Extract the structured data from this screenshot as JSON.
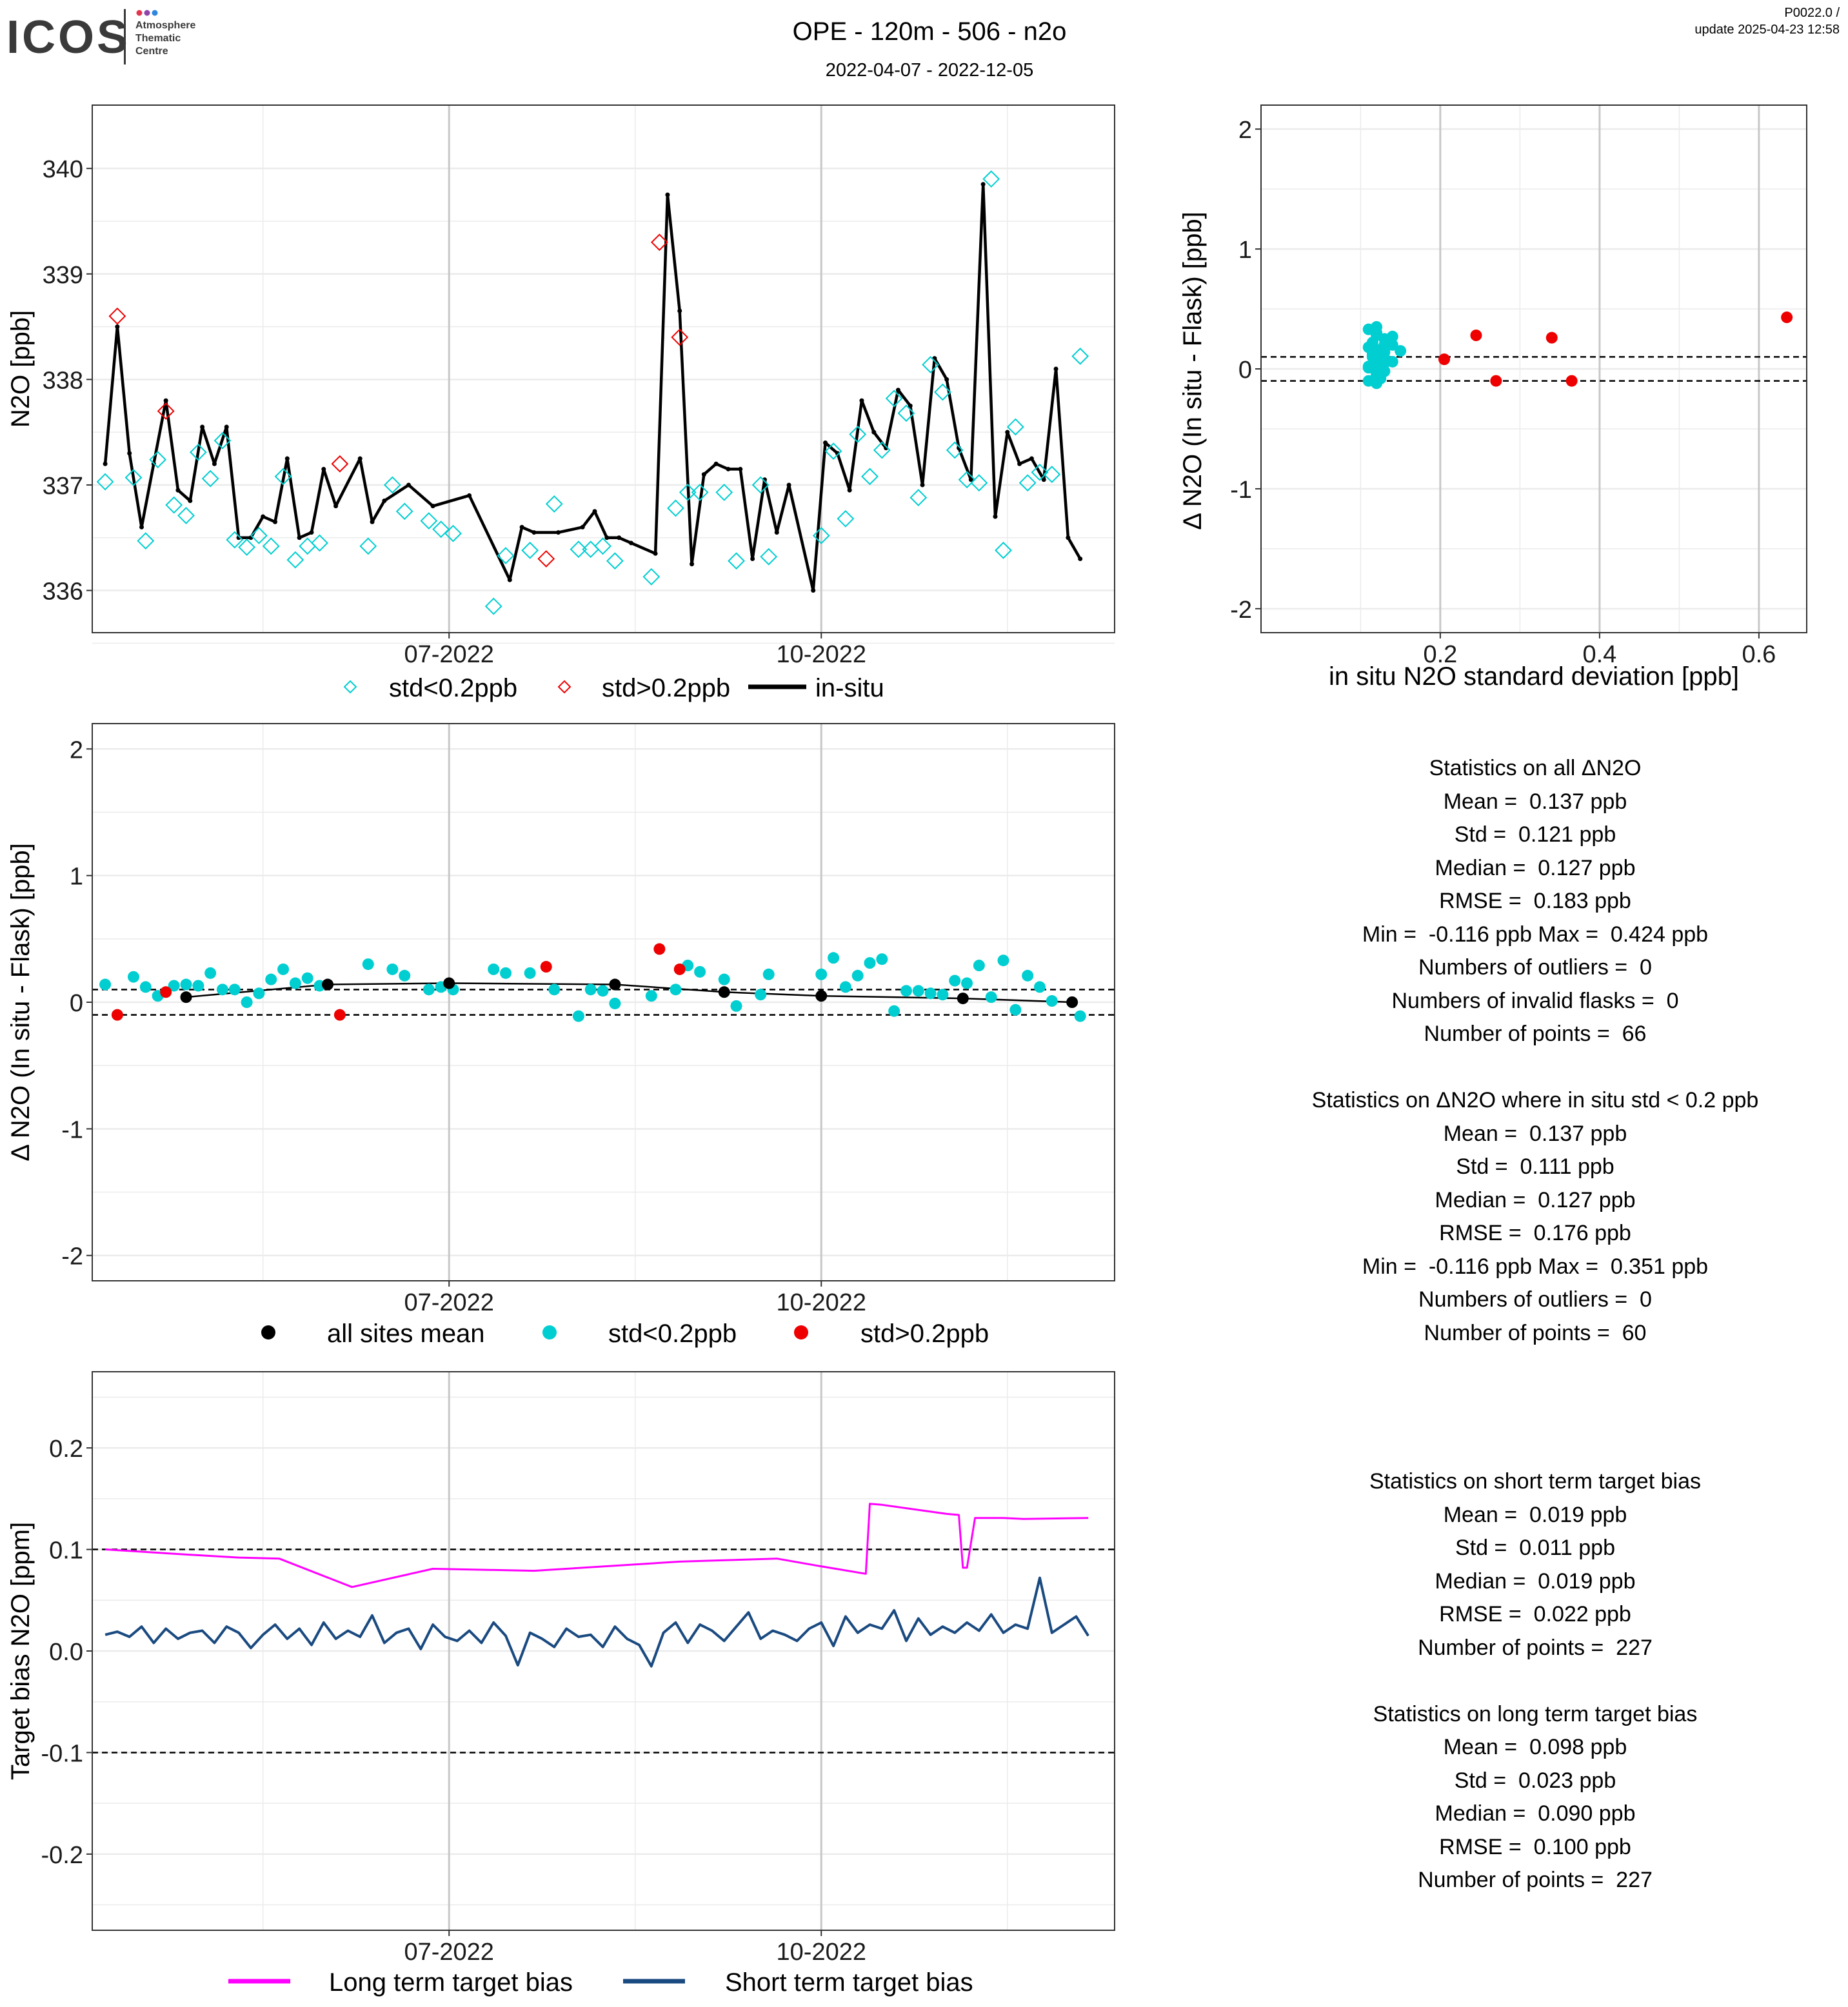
{
  "header": {
    "logo_text": "ICOS",
    "logo_sub": [
      "Atmosphere",
      "Thematic",
      "Centre"
    ],
    "title": "OPE - 120m - 506 - n2o",
    "subtitle": "2022-04-07 - 2022-12-05",
    "version": "P0022.0 /",
    "update": "update  2025-04-23 12:58"
  },
  "colors": {
    "cyan": "#00CED1",
    "red": "#EE0000",
    "black": "#000000",
    "magenta": "#FF00FF",
    "navy": "#1A4A80",
    "grid": "#EBEBEB",
    "vline": "#C8C8C8"
  },
  "chart_data": [
    {
      "id": "timeseries",
      "type": "line",
      "ylabel": "N2O [ppb]",
      "x_tick_labels": [
        "07-2022",
        "10-2022"
      ],
      "ylim": [
        335.6,
        340.6
      ],
      "yticks": [
        336,
        337,
        338,
        339,
        340
      ],
      "legend": [
        "std<0.2ppb",
        "std>0.2ppb",
        "in-situ"
      ],
      "insitu": {
        "x": [
          "2022-04-07",
          "2022-04-10",
          "2022-04-13",
          "2022-04-16",
          "2022-04-19",
          "2022-04-22",
          "2022-04-25",
          "2022-04-28",
          "2022-05-01",
          "2022-05-04",
          "2022-05-07",
          "2022-05-10",
          "2022-05-13",
          "2022-05-16",
          "2022-05-19",
          "2022-05-22",
          "2022-05-25",
          "2022-05-28",
          "2022-05-31",
          "2022-06-03",
          "2022-06-09",
          "2022-06-12",
          "2022-06-15",
          "2022-06-21",
          "2022-06-27",
          "2022-07-06",
          "2022-07-16",
          "2022-07-19",
          "2022-07-22",
          "2022-07-28",
          "2022-08-03",
          "2022-08-06",
          "2022-08-09",
          "2022-08-12",
          "2022-08-15",
          "2022-08-21",
          "2022-08-24",
          "2022-08-27",
          "2022-08-30",
          "2022-09-02",
          "2022-09-05",
          "2022-09-08",
          "2022-09-11",
          "2022-09-14",
          "2022-09-17",
          "2022-09-20",
          "2022-09-23",
          "2022-09-29",
          "2022-10-02",
          "2022-10-05",
          "2022-10-08",
          "2022-10-11",
          "2022-10-14",
          "2022-10-17",
          "2022-10-20",
          "2022-10-23",
          "2022-10-26",
          "2022-10-29",
          "2022-11-01",
          "2022-11-04",
          "2022-11-07",
          "2022-11-10",
          "2022-11-13",
          "2022-11-16",
          "2022-11-19",
          "2022-11-22",
          "2022-11-25",
          "2022-11-28",
          "2022-12-01",
          "2022-12-04"
        ],
        "y": [
          337.2,
          338.5,
          337.3,
          336.6,
          337.2,
          337.8,
          336.95,
          336.85,
          337.55,
          337.2,
          337.55,
          336.5,
          336.5,
          336.7,
          336.65,
          337.25,
          336.5,
          336.55,
          337.15,
          336.8,
          337.25,
          336.65,
          336.85,
          337.0,
          336.8,
          336.9,
          336.1,
          336.6,
          336.55,
          336.55,
          336.6,
          336.75,
          336.5,
          336.5,
          336.45,
          336.35,
          339.75,
          338.65,
          336.25,
          337.1,
          337.2,
          337.15,
          337.15,
          336.3,
          337.05,
          336.55,
          337.0,
          336.0,
          337.4,
          337.3,
          336.95,
          337.8,
          337.5,
          337.35,
          337.9,
          337.75,
          337.0,
          338.2,
          338.0,
          337.35,
          337.05,
          339.85,
          336.7,
          337.5,
          337.2,
          337.25,
          337.05,
          338.1,
          336.5,
          336.3
        ]
      },
      "flask_low_std": {
        "x": [
          "2022-04-07",
          "2022-04-14",
          "2022-04-17",
          "2022-04-20",
          "2022-04-24",
          "2022-04-27",
          "2022-04-30",
          "2022-05-03",
          "2022-05-06",
          "2022-05-09",
          "2022-05-12",
          "2022-05-15",
          "2022-05-18",
          "2022-05-21",
          "2022-05-24",
          "2022-05-27",
          "2022-05-30",
          "2022-06-11",
          "2022-06-17",
          "2022-06-20",
          "2022-06-26",
          "2022-06-29",
          "2022-07-02",
          "2022-07-12",
          "2022-07-15",
          "2022-07-21",
          "2022-07-27",
          "2022-08-02",
          "2022-08-05",
          "2022-08-08",
          "2022-08-11",
          "2022-08-20",
          "2022-08-26",
          "2022-08-29",
          "2022-09-01",
          "2022-09-07",
          "2022-09-10",
          "2022-09-16",
          "2022-09-18",
          "2022-10-01",
          "2022-10-04",
          "2022-10-07",
          "2022-10-10",
          "2022-10-13",
          "2022-10-16",
          "2022-10-19",
          "2022-10-22",
          "2022-10-25",
          "2022-10-28",
          "2022-10-31",
          "2022-11-03",
          "2022-11-06",
          "2022-11-09",
          "2022-11-12",
          "2022-11-15",
          "2022-11-18",
          "2022-11-21",
          "2022-11-24",
          "2022-11-27",
          "2022-12-04"
        ],
        "y": [
          337.03,
          337.07,
          336.47,
          337.24,
          336.81,
          336.71,
          337.31,
          337.06,
          337.42,
          336.48,
          336.41,
          336.52,
          336.42,
          337.08,
          336.29,
          336.42,
          336.45,
          336.42,
          337.0,
          336.75,
          336.66,
          336.58,
          336.54,
          335.85,
          336.33,
          336.38,
          336.82,
          336.39,
          336.39,
          336.42,
          336.28,
          336.13,
          336.78,
          336.93,
          336.93,
          336.93,
          336.28,
          337.0,
          336.32,
          336.52,
          337.32,
          336.68,
          337.48,
          337.08,
          337.33,
          337.82,
          337.68,
          336.88,
          338.14,
          337.88,
          337.33,
          337.05,
          337.02,
          339.9,
          336.38,
          337.55,
          337.02,
          337.12,
          337.1,
          338.22
        ]
      },
      "flask_high_std": {
        "x": [
          "2022-04-10",
          "2022-04-22",
          "2022-06-04",
          "2022-07-25",
          "2022-08-22",
          "2022-08-27"
        ],
        "y": [
          338.6,
          337.7,
          337.2,
          336.3,
          339.3,
          338.4
        ]
      }
    },
    {
      "id": "scatter_std",
      "type": "scatter",
      "xlabel": "in situ N2O standard deviation [ppb]",
      "ylabel": "Δ N2O (In situ - Flask) [ppb]",
      "xlim": [
        -0.025,
        0.66
      ],
      "ylim": [
        -2.2,
        2.2
      ],
      "xticks": [
        0.2,
        0.4,
        0.6
      ],
      "yticks": [
        -2,
        -1,
        0,
        1,
        2
      ],
      "hlines": [
        0.1,
        -0.1
      ],
      "low_std_points": {
        "x": [
          0.11,
          0.12,
          0.13,
          0.11,
          0.14,
          0.12,
          0.115,
          0.125,
          0.13,
          0.12,
          0.11,
          0.13,
          0.12,
          0.14,
          0.15,
          0.11,
          0.125,
          0.13,
          0.12,
          0.115,
          0.12,
          0.13,
          0.14,
          0.12,
          0.11,
          0.13,
          0.12,
          0.125,
          0.115,
          0.12
        ],
        "y": [
          0.33,
          0.3,
          0.25,
          0.18,
          0.2,
          0.12,
          0.1,
          0.08,
          0.05,
          0.03,
          0.02,
          -0.02,
          -0.05,
          0.06,
          0.15,
          -0.1,
          -0.08,
          0.14,
          0.28,
          0.22,
          0.16,
          0.09,
          0.27,
          -0.12,
          0.01,
          0.2,
          0.35,
          0.1,
          0.12,
          -0.03
        ]
      },
      "high_std_points": {
        "x": [
          0.205,
          0.245,
          0.27,
          0.34,
          0.365,
          0.635
        ],
        "y": [
          0.08,
          0.28,
          -0.1,
          0.26,
          -0.1,
          0.43
        ]
      }
    },
    {
      "id": "delta_timeseries",
      "type": "scatter",
      "ylabel": "Δ N2O (In situ - Flask) [ppb]",
      "x_tick_labels": [
        "07-2022",
        "10-2022"
      ],
      "ylim": [
        -2.2,
        2.2
      ],
      "yticks": [
        -2,
        -1,
        0,
        1,
        2
      ],
      "hlines": [
        0.1,
        -0.1
      ],
      "legend": [
        "all sites mean",
        "std<0.2ppb",
        "std>0.2ppb"
      ],
      "mean_points": {
        "x": [
          "2022-04-27",
          "2022-06-01",
          "2022-07-01",
          "2022-08-11",
          "2022-09-07",
          "2022-10-01",
          "2022-11-05",
          "2022-12-02"
        ],
        "y": [
          0.04,
          0.14,
          0.15,
          0.14,
          0.08,
          0.05,
          0.03,
          0.0
        ]
      },
      "low_std_points": {
        "x": [
          "2022-04-07",
          "2022-04-14",
          "2022-04-17",
          "2022-04-20",
          "2022-04-24",
          "2022-04-27",
          "2022-04-30",
          "2022-05-03",
          "2022-05-06",
          "2022-05-09",
          "2022-05-12",
          "2022-05-15",
          "2022-05-18",
          "2022-05-21",
          "2022-05-24",
          "2022-05-27",
          "2022-05-30",
          "2022-06-11",
          "2022-06-17",
          "2022-06-20",
          "2022-06-26",
          "2022-06-29",
          "2022-07-02",
          "2022-07-12",
          "2022-07-15",
          "2022-07-21",
          "2022-07-27",
          "2022-08-02",
          "2022-08-05",
          "2022-08-08",
          "2022-08-11",
          "2022-08-20",
          "2022-08-26",
          "2022-08-29",
          "2022-09-01",
          "2022-09-07",
          "2022-09-10",
          "2022-09-16",
          "2022-09-18",
          "2022-10-01",
          "2022-10-04",
          "2022-10-07",
          "2022-10-10",
          "2022-10-13",
          "2022-10-16",
          "2022-10-19",
          "2022-10-22",
          "2022-10-25",
          "2022-10-28",
          "2022-10-31",
          "2022-11-03",
          "2022-11-06",
          "2022-11-09",
          "2022-11-12",
          "2022-11-15",
          "2022-11-18",
          "2022-11-21",
          "2022-11-24",
          "2022-11-27",
          "2022-12-04"
        ],
        "y": [
          0.14,
          0.2,
          0.12,
          0.05,
          0.13,
          0.14,
          0.13,
          0.23,
          0.1,
          0.1,
          0.0,
          0.07,
          0.18,
          0.26,
          0.15,
          0.19,
          0.13,
          0.3,
          0.26,
          0.21,
          0.1,
          0.12,
          0.1,
          0.26,
          0.23,
          0.23,
          0.1,
          -0.11,
          0.1,
          0.09,
          -0.01,
          0.05,
          0.1,
          0.29,
          0.24,
          0.18,
          -0.03,
          0.06,
          0.22,
          0.22,
          0.35,
          0.12,
          0.21,
          0.31,
          0.34,
          -0.07,
          0.09,
          0.09,
          0.07,
          0.06,
          0.17,
          0.15,
          0.29,
          0.04,
          0.33,
          -0.06,
          0.21,
          0.12,
          0.01,
          -0.11
        ]
      },
      "high_std_points": {
        "x": [
          "2022-04-10",
          "2022-04-22",
          "2022-06-04",
          "2022-07-25",
          "2022-08-22",
          "2022-08-27"
        ],
        "y": [
          -0.1,
          0.08,
          -0.1,
          0.28,
          0.42,
          0.26
        ]
      }
    },
    {
      "id": "target_bias",
      "type": "line",
      "ylabel": "Target bias N2O [ppm]",
      "x_tick_labels": [
        "07-2022",
        "10-2022"
      ],
      "ylim": [
        -0.275,
        0.275
      ],
      "yticks": [
        -0.2,
        -0.1,
        0.0,
        0.1,
        0.2
      ],
      "hlines": [
        0.1,
        -0.1
      ],
      "legend": [
        "Long term target bias",
        "Short term target bias"
      ],
      "long_term": {
        "x": [
          "2022-04-07",
          "2022-04-27",
          "2022-05-10",
          "2022-05-20",
          "2022-06-07",
          "2022-06-27",
          "2022-07-22",
          "2022-08-27",
          "2022-09-20",
          "2022-09-30",
          "2022-10-12",
          "2022-10-13",
          "2022-10-16",
          "2022-11-01",
          "2022-11-04",
          "2022-11-05",
          "2022-11-06",
          "2022-11-08",
          "2022-11-15",
          "2022-11-20",
          "2022-12-06"
        ],
        "y": [
          0.1,
          0.095,
          0.092,
          0.091,
          0.063,
          0.081,
          0.079,
          0.088,
          0.091,
          0.084,
          0.076,
          0.145,
          0.144,
          0.135,
          0.134,
          0.082,
          0.082,
          0.131,
          0.131,
          0.13,
          0.131
        ]
      },
      "short_term": {
        "x": [
          "2022-04-07",
          "2022-04-10",
          "2022-04-13",
          "2022-04-16",
          "2022-04-19",
          "2022-04-22",
          "2022-04-25",
          "2022-04-28",
          "2022-05-01",
          "2022-05-04",
          "2022-05-07",
          "2022-05-10",
          "2022-05-13",
          "2022-05-16",
          "2022-05-19",
          "2022-05-22",
          "2022-05-25",
          "2022-05-28",
          "2022-05-31",
          "2022-06-03",
          "2022-06-06",
          "2022-06-09",
          "2022-06-12",
          "2022-06-15",
          "2022-06-18",
          "2022-06-21",
          "2022-06-24",
          "2022-06-27",
          "2022-06-30",
          "2022-07-03",
          "2022-07-06",
          "2022-07-09",
          "2022-07-12",
          "2022-07-15",
          "2022-07-18",
          "2022-07-21",
          "2022-07-24",
          "2022-07-27",
          "2022-07-30",
          "2022-08-02",
          "2022-08-05",
          "2022-08-08",
          "2022-08-11",
          "2022-08-14",
          "2022-08-17",
          "2022-08-20",
          "2022-08-23",
          "2022-08-26",
          "2022-08-29",
          "2022-09-01",
          "2022-09-04",
          "2022-09-07",
          "2022-09-10",
          "2022-09-13",
          "2022-09-16",
          "2022-09-19",
          "2022-09-22",
          "2022-09-25",
          "2022-09-28",
          "2022-10-01",
          "2022-10-04",
          "2022-10-07",
          "2022-10-10",
          "2022-10-13",
          "2022-10-16",
          "2022-10-19",
          "2022-10-22",
          "2022-10-25",
          "2022-10-28",
          "2022-10-31",
          "2022-11-03",
          "2022-11-06",
          "2022-11-09",
          "2022-11-12",
          "2022-11-15",
          "2022-11-18",
          "2022-11-21",
          "2022-11-24",
          "2022-11-27",
          "2022-11-30",
          "2022-12-03",
          "2022-12-06"
        ],
        "y": [
          0.016,
          0.019,
          0.014,
          0.024,
          0.008,
          0.022,
          0.012,
          0.018,
          0.02,
          0.008,
          0.024,
          0.018,
          0.003,
          0.016,
          0.026,
          0.012,
          0.022,
          0.006,
          0.028,
          0.012,
          0.02,
          0.014,
          0.035,
          0.008,
          0.018,
          0.022,
          0.002,
          0.026,
          0.014,
          0.01,
          0.02,
          0.008,
          0.028,
          0.015,
          -0.014,
          0.018,
          0.012,
          0.004,
          0.022,
          0.014,
          0.016,
          0.004,
          0.024,
          0.012,
          0.006,
          -0.015,
          0.018,
          0.028,
          0.008,
          0.026,
          0.02,
          0.01,
          0.024,
          0.038,
          0.012,
          0.02,
          0.016,
          0.01,
          0.022,
          0.028,
          0.005,
          0.034,
          0.018,
          0.026,
          0.022,
          0.04,
          0.01,
          0.032,
          0.016,
          0.024,
          0.018,
          0.028,
          0.02,
          0.036,
          0.018,
          0.026,
          0.022,
          0.072,
          0.018,
          0.026,
          0.034,
          0.015
        ]
      }
    }
  ],
  "stats": {
    "block1": [
      "Statistics on all ΔN2O",
      "Mean =  0.137 ppb",
      "Std =  0.121 ppb",
      "Median =  0.127 ppb",
      "RMSE =  0.183 ppb",
      "Min =  -0.116 ppb Max =  0.424 ppb",
      "Numbers of outliers =  0",
      "Numbers of invalid flasks =  0",
      "Number of points =  66",
      "",
      "Statistics on ΔN2O where in situ std < 0.2 ppb",
      "Mean =  0.137 ppb",
      "Std =  0.111 ppb",
      "Median =  0.127 ppb",
      "RMSE =  0.176 ppb",
      "Min =  -0.116 ppb Max =  0.351 ppb",
      "Numbers of outliers =  0",
      "Number of points =  60"
    ],
    "block2": [
      "Statistics on short term target bias",
      "Mean =  0.019 ppb",
      "Std =  0.011 ppb",
      "Median =  0.019 ppb",
      "RMSE =  0.022 ppb",
      "Number of points =  227",
      "",
      "Statistics on long term target bias",
      "Mean =  0.098 ppb",
      "Std =  0.023 ppb",
      "Median =  0.090 ppb",
      "RMSE =  0.100 ppb",
      "Number of points =  227"
    ]
  }
}
